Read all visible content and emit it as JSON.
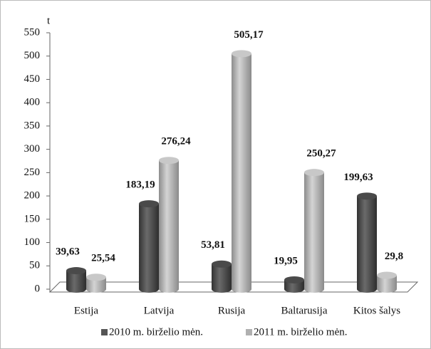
{
  "chart_data": {
    "type": "bar3d",
    "y_unit": "t",
    "categories": [
      "Estija",
      "Latvija",
      "Rusija",
      "Baltarusija",
      "Kitos šalys"
    ],
    "series": [
      {
        "name": "2010 m. birželio mėn.",
        "color": "#555555",
        "values": [
          39.63,
          183.19,
          53.81,
          19.95,
          199.63
        ],
        "value_labels": [
          "39,63",
          "183,19",
          "53,81",
          "19,95",
          "199,63"
        ]
      },
      {
        "name": "2011 m. birželio mėn.",
        "color": "#b0b0b0",
        "values": [
          25.54,
          276.24,
          505.17,
          250.27,
          29.8
        ],
        "value_labels": [
          "25,54",
          "276,24",
          "505,17",
          "250,27",
          "29,8"
        ]
      }
    ],
    "ylim": [
      0,
      550
    ],
    "yticks": [
      0,
      50,
      100,
      150,
      200,
      250,
      300,
      350,
      400,
      450,
      500,
      550
    ],
    "grid": false
  }
}
